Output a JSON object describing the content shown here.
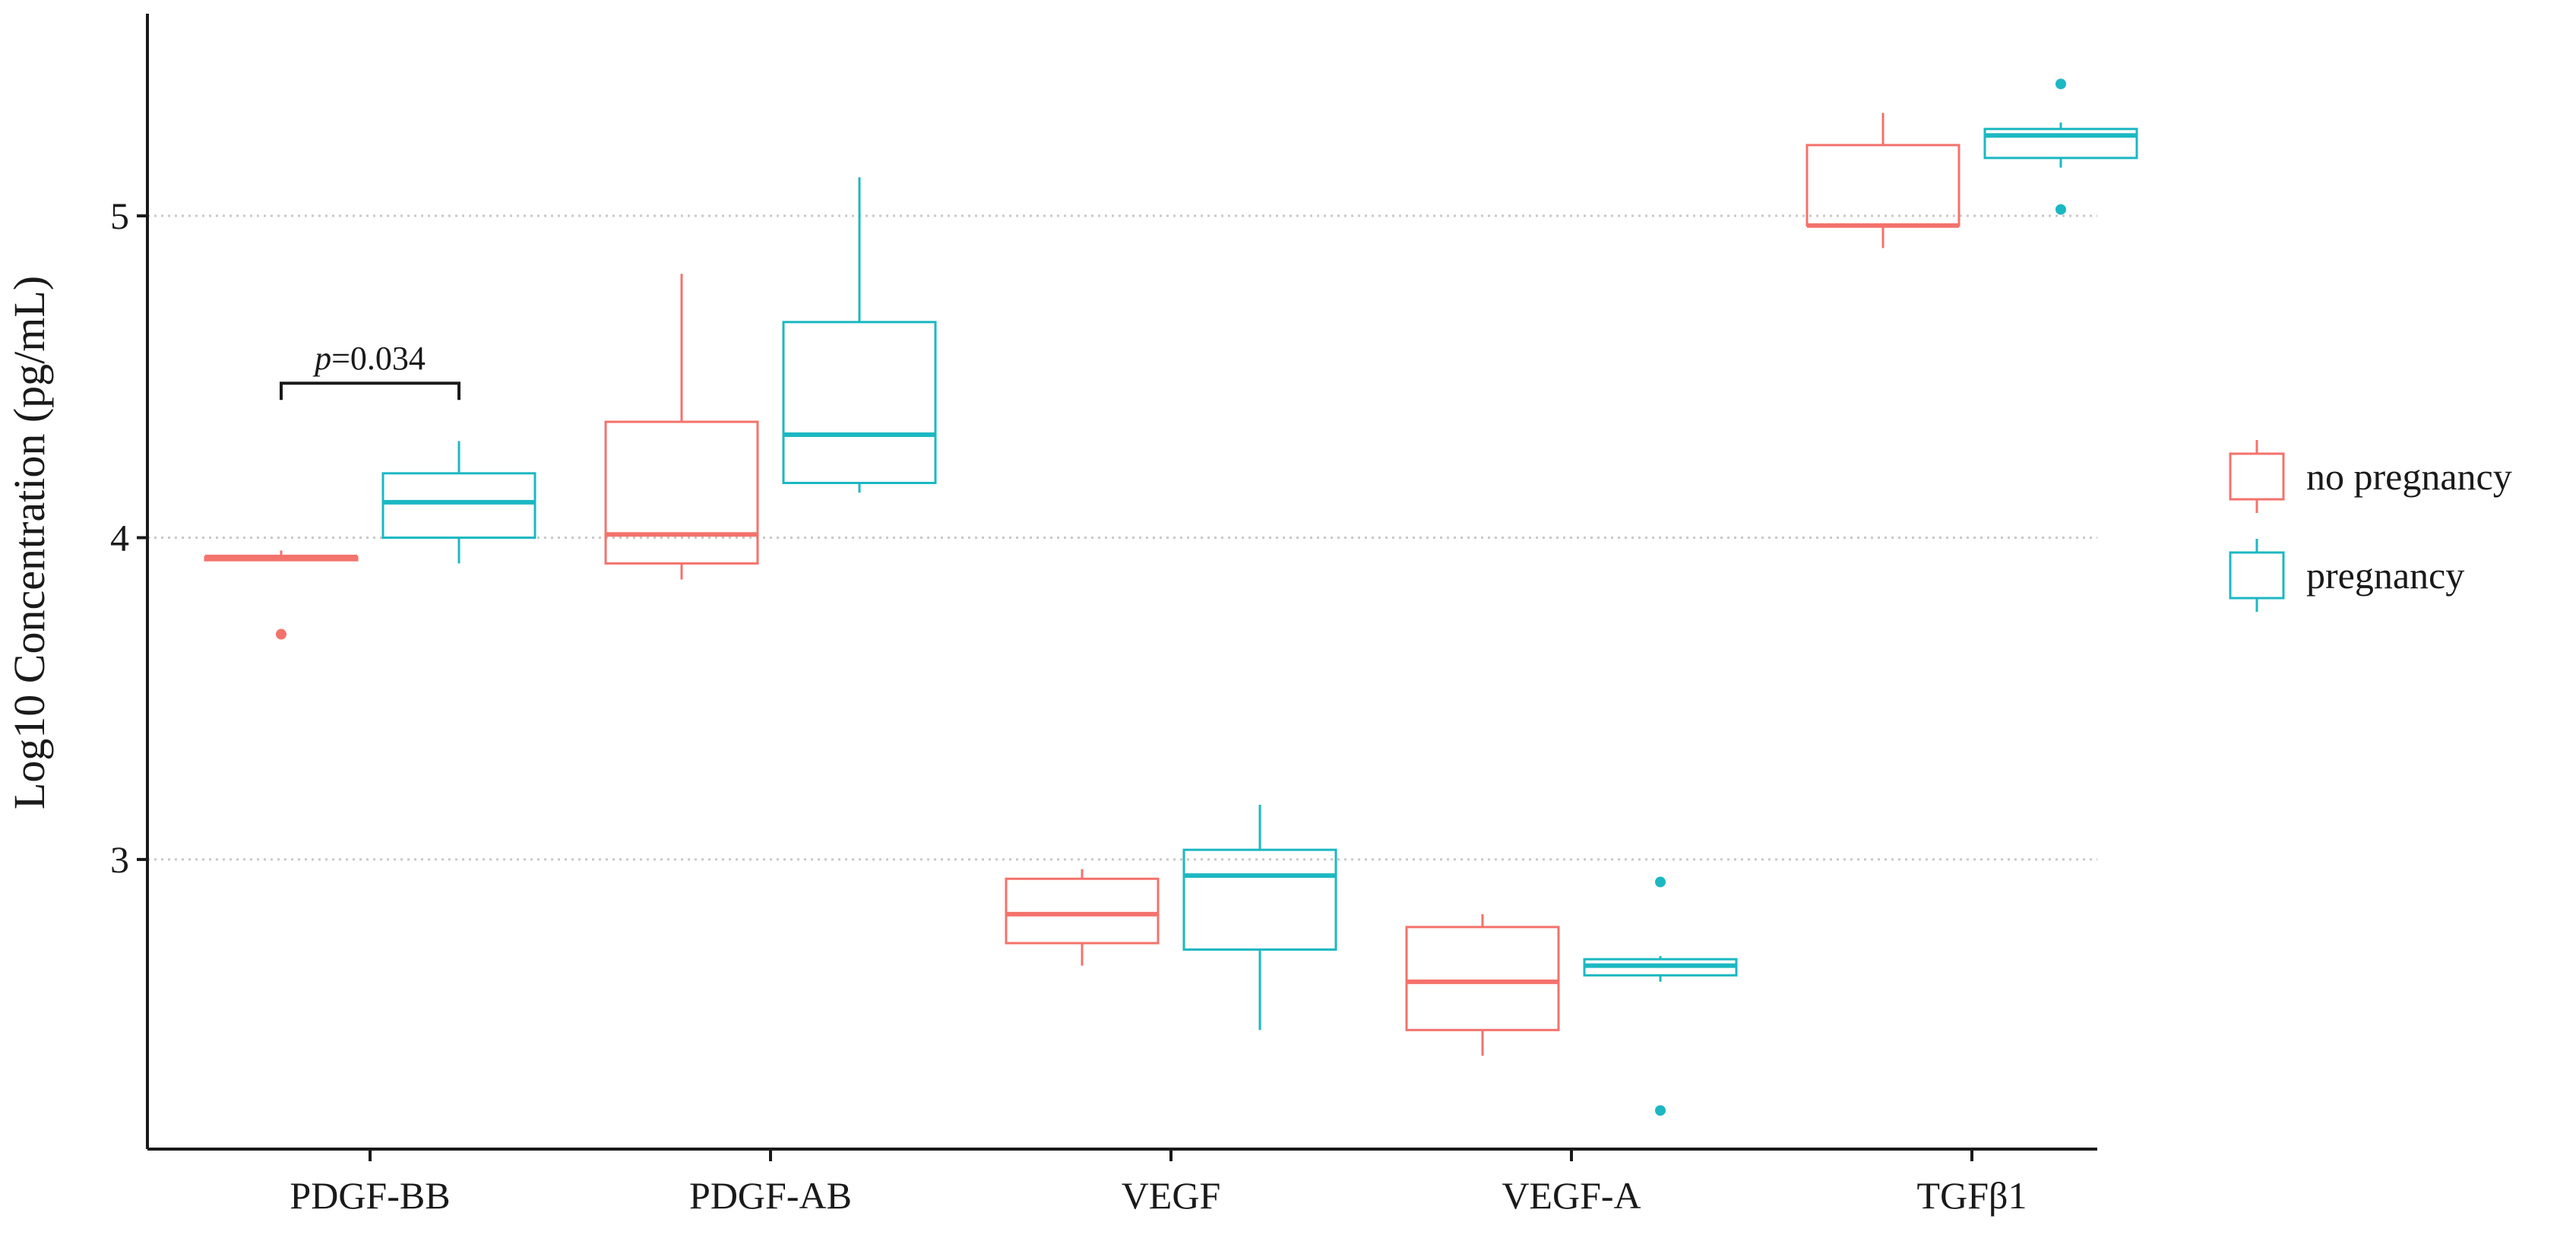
{
  "chart_data": {
    "type": "box",
    "title": "",
    "xlabel": "",
    "ylabel": "Log10 Concentration (pg/mL)",
    "ylim": [
      2.1,
      5.6
    ],
    "yticks": [
      3,
      4,
      5
    ],
    "grid": "horizontal dotted at major ticks",
    "categories": [
      "PDGF-BB",
      "PDGF-AB",
      "VEGF",
      "VEGF-A",
      "TGFβ1"
    ],
    "legend": {
      "placement": "right",
      "entries": [
        {
          "label": "no pregnancy",
          "color": "#F4726C"
        },
        {
          "label": "pregnancy",
          "color": "#1CB8C2"
        }
      ]
    },
    "series": [
      {
        "name": "no pregnancy",
        "color": "#F4726C",
        "boxes": [
          {
            "whisker_low": 3.93,
            "q1": 3.93,
            "median": 3.94,
            "q3": 3.94,
            "whisker_high": 3.96,
            "outliers": [
              3.7
            ]
          },
          {
            "whisker_low": 3.87,
            "q1": 3.92,
            "median": 4.01,
            "q3": 4.36,
            "whisker_high": 4.82,
            "outliers": []
          },
          {
            "whisker_low": 2.67,
            "q1": 2.74,
            "median": 2.83,
            "q3": 2.94,
            "whisker_high": 2.97,
            "outliers": []
          },
          {
            "whisker_low": 2.39,
            "q1": 2.47,
            "median": 2.62,
            "q3": 2.79,
            "whisker_high": 2.83,
            "outliers": []
          },
          {
            "whisker_low": 4.9,
            "q1": 4.97,
            "median": 4.97,
            "q3": 5.22,
            "whisker_high": 5.32,
            "outliers": []
          }
        ]
      },
      {
        "name": "pregnancy",
        "color": "#1CB8C2",
        "boxes": [
          {
            "whisker_low": 3.92,
            "q1": 4.0,
            "median": 4.11,
            "q3": 4.2,
            "whisker_high": 4.3,
            "outliers": []
          },
          {
            "whisker_low": 4.14,
            "q1": 4.17,
            "median": 4.32,
            "q3": 4.67,
            "whisker_high": 5.12,
            "outliers": []
          },
          {
            "whisker_low": 2.47,
            "q1": 2.72,
            "median": 2.95,
            "q3": 3.03,
            "whisker_high": 3.17,
            "outliers": []
          },
          {
            "whisker_low": 2.62,
            "q1": 2.64,
            "median": 2.67,
            "q3": 2.69,
            "whisker_high": 2.7,
            "outliers": [
              2.93,
              2.22
            ]
          },
          {
            "whisker_low": 5.15,
            "q1": 5.18,
            "median": 5.25,
            "q3": 5.27,
            "whisker_high": 5.29,
            "outliers": [
              5.41,
              5.02
            ]
          }
        ]
      }
    ],
    "annotations": [
      {
        "category_index": 0,
        "y": 4.48,
        "italic": "p",
        "text": "=0.034"
      }
    ]
  }
}
